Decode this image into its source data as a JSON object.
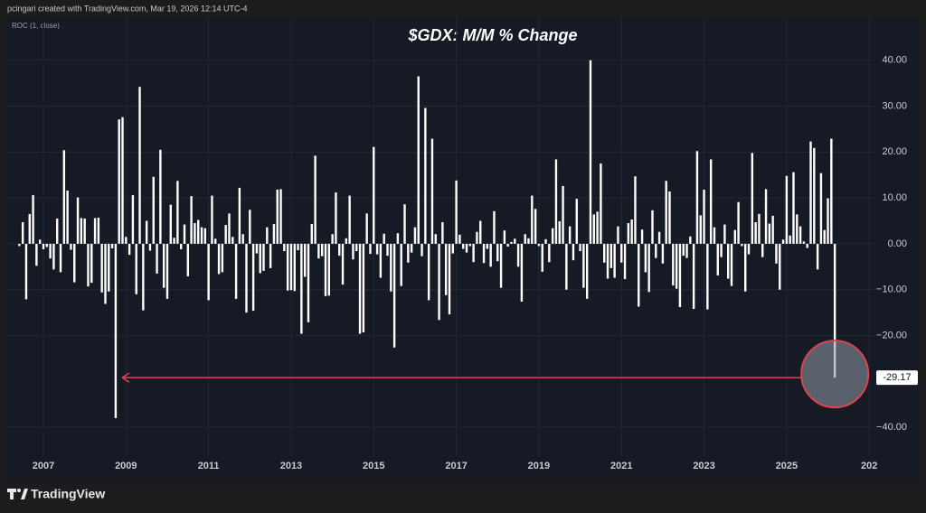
{
  "header_text": "pcingari created with TradingView.com, Mar 19, 2026 12:14 UTC-4",
  "indicator_label": "ROC (1, close)",
  "brand": "TradingView",
  "chart_data": {
    "type": "bar",
    "title": "$GDX: M/M % Change",
    "color": "#ffffff",
    "grid": true,
    "ylim": [
      -46,
      49
    ],
    "yticks": [
      {
        "value": 40,
        "label": "40.00"
      },
      {
        "value": 30,
        "label": "30.00"
      },
      {
        "value": 20,
        "label": "20.00"
      },
      {
        "value": 10,
        "label": "10.00"
      },
      {
        "value": 0,
        "label": "0.00"
      },
      {
        "value": -10,
        "label": "−10.00"
      },
      {
        "value": -20,
        "label": "−20.00"
      },
      {
        "value": -40,
        "label": "−40.00"
      }
    ],
    "categories": [
      null,
      null,
      null,
      null,
      null,
      null,
      null,
      "2007",
      null,
      null,
      null,
      null,
      null,
      null,
      null,
      null,
      null,
      null,
      null,
      null,
      null,
      null,
      null,
      null,
      null,
      null,
      null,
      null,
      null,
      null,
      null,
      "2009",
      null,
      null,
      null,
      null,
      null,
      null,
      null,
      null,
      null,
      null,
      null,
      null,
      null,
      null,
      null,
      null,
      null,
      null,
      null,
      null,
      null,
      null,
      null,
      "2011",
      null,
      null,
      null,
      null,
      null,
      null,
      null,
      null,
      null,
      null,
      null,
      null,
      null,
      null,
      null,
      null,
      null,
      null,
      null,
      null,
      null,
      null,
      null,
      "2013",
      null,
      null,
      null,
      null,
      null,
      null,
      null,
      null,
      null,
      null,
      null,
      null,
      null,
      null,
      null,
      null,
      null,
      null,
      null,
      null,
      null,
      null,
      null,
      "2015",
      null,
      null,
      null,
      null,
      null,
      null,
      null,
      null,
      null,
      null,
      null,
      null,
      null,
      null,
      null,
      null,
      null,
      null,
      null,
      null,
      null,
      null,
      null,
      "2017",
      null,
      null,
      null,
      null,
      null,
      null,
      null,
      null,
      null,
      null,
      null,
      null,
      null,
      null,
      null,
      null,
      null,
      null,
      null,
      null,
      null,
      null,
      null,
      "2019",
      null,
      null,
      null,
      null,
      null,
      null,
      null,
      null,
      null,
      null,
      null,
      null,
      null,
      null,
      null,
      null,
      null,
      null,
      null,
      null,
      null,
      null,
      null,
      "2021",
      null,
      null,
      null,
      null,
      null,
      null,
      null,
      null,
      null,
      null,
      null,
      null,
      null,
      null,
      null,
      null,
      null,
      null,
      null,
      null,
      null,
      null,
      null,
      "2023",
      null,
      null,
      null,
      null,
      null,
      null,
      null,
      null,
      null,
      null,
      null,
      null,
      null,
      null,
      null,
      null,
      null,
      null,
      null,
      null,
      null,
      null,
      null,
      "2025",
      null,
      null,
      null,
      null,
      null,
      null,
      null,
      null,
      null,
      null,
      null,
      null,
      null,
      null,
      null,
      null,
      null,
      null,
      null,
      null,
      null,
      null,
      null,
      "202"
    ],
    "values": [
      -0.5,
      4.7,
      -12.1,
      6.5,
      10.6,
      -4.8,
      0.9,
      -1.2,
      -0.7,
      -3.2,
      -5.6,
      5.5,
      -6.2,
      20.4,
      11.6,
      -1.3,
      -8.4,
      10.1,
      5.6,
      5.5,
      -9.3,
      -8.5,
      5.6,
      5.7,
      -10.6,
      -13.1,
      -10.4,
      -1.0,
      -38.0,
      27.1,
      27.6,
      1.5,
      -2.4,
      10.6,
      -11.0,
      34.2,
      -14.5,
      5.0,
      -1.5,
      14.6,
      -6.5,
      20.5,
      -9.6,
      -12.0,
      8.5,
      1.3,
      13.7,
      -1.2,
      4.2,
      -7.1,
      10.4,
      4.5,
      5.2,
      3.6,
      3.4,
      -12.3,
      10.5,
      1.1,
      -6.6,
      -6.2,
      4.1,
      6.6,
      1.5,
      -12.0,
      12.2,
      2.1,
      -15.0,
      7.4,
      -14.6,
      -2.1,
      -6.4,
      -5.9,
      3.6,
      -5.3,
      4.3,
      11.8,
      11.9,
      -1.6,
      -10.2,
      -10.1,
      -10.3,
      -1.4,
      -19.6,
      -7.2,
      -17.1,
      4.3,
      19.2,
      -3.2,
      -2.7,
      -11.4,
      -11.3,
      2.1,
      11.2,
      -2.6,
      -8.9,
      1.2,
      10.5,
      -3.4,
      -1.6,
      -19.6,
      -19.3,
      6.6,
      -2.2,
      21.1,
      -2.3,
      -7.4,
      2.2,
      -2.6,
      -10.4,
      -22.6,
      2.3,
      -9.2,
      8.6,
      -4.1,
      -1.9,
      3.6,
      36.5,
      -2.7,
      29.6,
      -12.3,
      22.9,
      2.1,
      -16.6,
      4.7,
      -11.2,
      -15.4,
      -2.1,
      13.8,
      2.0,
      -1.1,
      -1.9,
      -0.5,
      -4.0,
      2.6,
      5.0,
      -4.2,
      -1.1,
      -5.0,
      7.1,
      -3.8,
      -9.6,
      2.9,
      -0.6,
      0.4,
      1.1,
      -5.0,
      -12.6,
      2.1,
      1.2,
      10.5,
      7.6,
      -0.5,
      -6.1,
      1.0,
      -4.0,
      3.4,
      18.4,
      4.9,
      12.6,
      -10.0,
      3.8,
      -3.6,
      9.8,
      -1.6,
      -9.6,
      -12.0,
      40.0,
      6.4,
      7.0,
      17.5,
      -4.1,
      -7.6,
      -5.3,
      -7.4,
      3.8,
      -4.1,
      -7.7,
      4.5,
      5.3,
      14.7,
      -13.7,
      3.1,
      -6.2,
      -10.5,
      7.3,
      -3.1,
      2.6,
      -4.3,
      13.7,
      11.4,
      -9.1,
      -9.8,
      -13.8,
      -2.6,
      -3.1,
      1.6,
      -14.2,
      20.2,
      6.2,
      11.8,
      -14.3,
      18.4,
      3.6,
      -6.9,
      -2.9,
      4.2,
      -7.6,
      -9.2,
      3.0,
      9.1,
      -0.5,
      -10.4,
      -2.3,
      19.8,
      4.7,
      6.5,
      -2.9,
      11.9,
      4.4,
      6.1,
      -4.3,
      -10.0,
      0.9,
      14.8,
      1.8,
      15.6,
      6.4,
      3.8,
      0.5,
      -0.9,
      22.3,
      20.9,
      -5.6,
      15.4,
      3.0,
      9.9,
      22.9,
      -29.17,
      null,
      null,
      null,
      null,
      null,
      null,
      null,
      null,
      null,
      null
    ]
  }
}
